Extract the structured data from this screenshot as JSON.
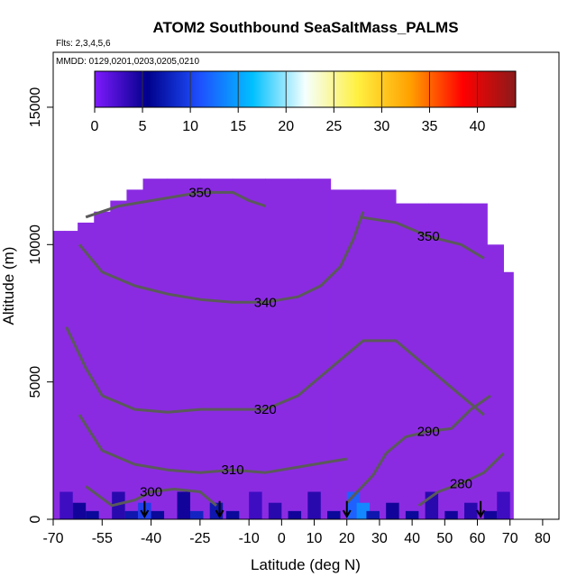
{
  "chart_data": {
    "type": "heatmap",
    "title": "ATOM2 Southbound SeaSaltMass_PALMS",
    "info_flights": "Flts: 2,3,4,5,6",
    "info_dates": "MMDD: 0129,0201,0203,0205,0210",
    "xlabel": "Latitude (deg N)",
    "ylabel": "Altitude (m)",
    "xlim": [
      -70,
      85
    ],
    "ylim": [
      0,
      17000
    ],
    "x_ticks": [
      -70,
      -55,
      -40,
      -25,
      -10,
      0,
      10,
      20,
      30,
      40,
      50,
      60,
      70,
      80
    ],
    "y_ticks": [
      0,
      5000,
      10000,
      15000
    ],
    "colorbar": {
      "range": [
        0,
        44
      ],
      "ticks": [
        0,
        5,
        10,
        15,
        20,
        25,
        30,
        35,
        40
      ],
      "stops": [
        "#7f1aff",
        "#00008b",
        "#1e50ff",
        "#00c0ff",
        "#f5ffff",
        "#fff040",
        "#ffa000",
        "#ff0000",
        "#8b1a1a"
      ]
    },
    "background_color": "#8a2be2",
    "coverage_columns": [
      {
        "lat": -68,
        "top": 10500
      },
      {
        "lat": -65,
        "top": 10500
      },
      {
        "lat": -60,
        "top": 10800
      },
      {
        "lat": -55,
        "top": 11200
      },
      {
        "lat": -50,
        "top": 11600
      },
      {
        "lat": -45,
        "top": 12000
      },
      {
        "lat": -40,
        "top": 12400
      },
      {
        "lat": -30,
        "top": 12400
      },
      {
        "lat": -20,
        "top": 12400
      },
      {
        "lat": -10,
        "top": 12400
      },
      {
        "lat": 0,
        "top": 12400
      },
      {
        "lat": 10,
        "top": 12400
      },
      {
        "lat": 20,
        "top": 12000
      },
      {
        "lat": 30,
        "top": 12000
      },
      {
        "lat": 40,
        "top": 11500
      },
      {
        "lat": 50,
        "top": 11500
      },
      {
        "lat": 60,
        "top": 11500
      },
      {
        "lat": 66,
        "top": 10000
      },
      {
        "lat": 70,
        "top": 9000
      }
    ],
    "surface_cells": [
      {
        "lat": -66,
        "alt": 1000,
        "value": 3
      },
      {
        "lat": -62,
        "alt": 600,
        "value": 5
      },
      {
        "lat": -58,
        "alt": 300,
        "value": 6
      },
      {
        "lat": -50,
        "alt": 1000,
        "value": 4
      },
      {
        "lat": -46,
        "alt": 300,
        "value": 7
      },
      {
        "lat": -42,
        "alt": 600,
        "value": 10
      },
      {
        "lat": -38,
        "alt": 300,
        "value": 6
      },
      {
        "lat": -30,
        "alt": 1000,
        "value": 5
      },
      {
        "lat": -26,
        "alt": 300,
        "value": 8
      },
      {
        "lat": -20,
        "alt": 600,
        "value": 7
      },
      {
        "lat": -15,
        "alt": 300,
        "value": 6
      },
      {
        "lat": -8,
        "alt": 1000,
        "value": 3
      },
      {
        "lat": -2,
        "alt": 600,
        "value": 4
      },
      {
        "lat": 4,
        "alt": 300,
        "value": 5
      },
      {
        "lat": 10,
        "alt": 1000,
        "value": 4
      },
      {
        "lat": 16,
        "alt": 300,
        "value": 6
      },
      {
        "lat": 22,
        "alt": 1000,
        "value": 12
      },
      {
        "lat": 25,
        "alt": 600,
        "value": 14
      },
      {
        "lat": 28,
        "alt": 300,
        "value": 7
      },
      {
        "lat": 34,
        "alt": 600,
        "value": 5
      },
      {
        "lat": 40,
        "alt": 300,
        "value": 6
      },
      {
        "lat": 46,
        "alt": 1000,
        "value": 4
      },
      {
        "lat": 52,
        "alt": 300,
        "value": 5
      },
      {
        "lat": 58,
        "alt": 600,
        "value": 4
      },
      {
        "lat": 64,
        "alt": 300,
        "value": 5
      },
      {
        "lat": 68,
        "alt": 1000,
        "value": 3
      }
    ],
    "contours": [
      {
        "label": "300",
        "points": [
          [
            -60,
            1200
          ],
          [
            -52,
            500
          ],
          [
            -45,
            700
          ],
          [
            -40,
            1000
          ],
          [
            -33,
            1100
          ],
          [
            -25,
            1000
          ],
          [
            -20,
            500
          ]
        ]
      },
      {
        "label": "310",
        "points": [
          [
            -62,
            3800
          ],
          [
            -55,
            2500
          ],
          [
            -45,
            2000
          ],
          [
            -35,
            1800
          ],
          [
            -25,
            1700
          ],
          [
            -15,
            1800
          ],
          [
            -5,
            1700
          ],
          [
            5,
            1900
          ],
          [
            15,
            2100
          ],
          [
            20,
            2200
          ]
        ]
      },
      {
        "label": "320",
        "points": [
          [
            -66,
            7000
          ],
          [
            -60,
            5500
          ],
          [
            -55,
            4500
          ],
          [
            -45,
            4000
          ],
          [
            -35,
            3900
          ],
          [
            -25,
            4000
          ],
          [
            -15,
            4000
          ],
          [
            -5,
            4000
          ],
          [
            5,
            4500
          ],
          [
            15,
            5500
          ],
          [
            25,
            6500
          ],
          [
            35,
            6500
          ],
          [
            45,
            5500
          ],
          [
            55,
            4500
          ],
          [
            62,
            3800
          ]
        ]
      },
      {
        "label": "340",
        "points": [
          [
            -62,
            10000
          ],
          [
            -55,
            9000
          ],
          [
            -45,
            8500
          ],
          [
            -35,
            8200
          ],
          [
            -25,
            8000
          ],
          [
            -15,
            7900
          ],
          [
            -5,
            7900
          ],
          [
            5,
            8100
          ],
          [
            12,
            8500
          ],
          [
            18,
            9200
          ],
          [
            22,
            10200
          ],
          [
            25,
            11200
          ]
        ]
      },
      {
        "label": "350",
        "points": [
          [
            -60,
            11000
          ],
          [
            -50,
            11400
          ],
          [
            -35,
            11700
          ],
          [
            -25,
            11900
          ],
          [
            -15,
            11900
          ],
          [
            -10,
            11600
          ],
          [
            -5,
            11400
          ]
        ]
      },
      {
        "label": "350",
        "points": [
          [
            24,
            11000
          ],
          [
            35,
            10800
          ],
          [
            45,
            10300
          ],
          [
            55,
            10000
          ],
          [
            62,
            9500
          ]
        ]
      },
      {
        "label": "290",
        "points": [
          [
            20,
            600
          ],
          [
            28,
            1600
          ],
          [
            32,
            2400
          ],
          [
            38,
            3000
          ],
          [
            45,
            3200
          ],
          [
            52,
            3300
          ],
          [
            58,
            4000
          ],
          [
            64,
            4500
          ]
        ]
      },
      {
        "label": "280",
        "points": [
          [
            42,
            500
          ],
          [
            48,
            1000
          ],
          [
            55,
            1300
          ],
          [
            62,
            1700
          ],
          [
            68,
            2400
          ]
        ]
      }
    ],
    "flight_markers": [
      -42,
      -19,
      20,
      61
    ]
  }
}
